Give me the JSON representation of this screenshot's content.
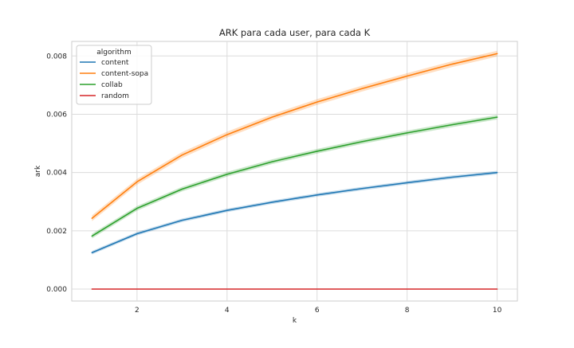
{
  "chart_data": {
    "type": "line",
    "title": "ARK para cada user, para cada K",
    "xlabel": "k",
    "ylabel": "ark",
    "xlim": [
      0.55,
      10.45
    ],
    "ylim": [
      -0.00041,
      0.0085
    ],
    "xticks": [
      2,
      4,
      6,
      8,
      10
    ],
    "yticks": [
      0.0,
      0.002,
      0.004,
      0.006,
      0.008
    ],
    "ytick_labels": [
      "0.000",
      "0.002",
      "0.004",
      "0.006",
      "0.008"
    ],
    "grid": true,
    "legend": {
      "title": "algorithm",
      "placement": "top-left"
    },
    "x": [
      1,
      2,
      3,
      4,
      5,
      6,
      7,
      8,
      9,
      10
    ],
    "series": [
      {
        "name": "content",
        "color": "#1f77b4",
        "values": [
          0.00125,
          0.0019,
          0.00236,
          0.0027,
          0.00298,
          0.00323,
          0.00345,
          0.00365,
          0.00384,
          0.004
        ],
        "band": 6e-05
      },
      {
        "name": "content-sopa",
        "color": "#ff7f0e",
        "values": [
          0.00243,
          0.00368,
          0.0046,
          0.0053,
          0.0059,
          0.00642,
          0.00688,
          0.00731,
          0.00772,
          0.00808
        ],
        "band": 0.0001
      },
      {
        "name": "collab",
        "color": "#2ca02c",
        "values": [
          0.00182,
          0.00277,
          0.00343,
          0.00394,
          0.00437,
          0.00473,
          0.00506,
          0.00536,
          0.00564,
          0.0059
        ],
        "band": 8e-05
      },
      {
        "name": "random",
        "color": "#d62728",
        "values": [
          0.0,
          0.0,
          0.0,
          0.0,
          0.0,
          0.0,
          0.0,
          0.0,
          0.0,
          0.0
        ],
        "band": 0.0
      }
    ]
  }
}
